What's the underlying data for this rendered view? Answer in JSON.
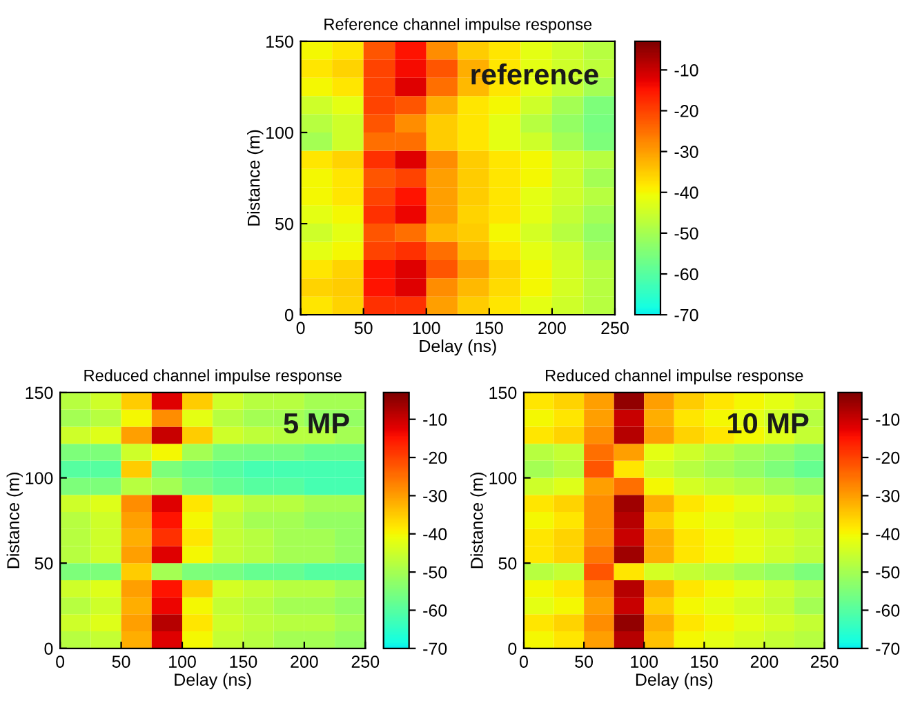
{
  "chart_data": [
    {
      "type": "heatmap",
      "title": "Reference channel impulse response",
      "xlabel": "Delay (ns)",
      "ylabel": "Distance (m)",
      "annotations": [
        "reference"
      ],
      "x": [
        12.5,
        37.5,
        62.5,
        87.5,
        112.5,
        137.5,
        162.5,
        187.5,
        212.5,
        237.5
      ],
      "y": [
        145,
        135,
        125,
        115,
        105,
        95,
        85,
        75,
        65,
        55,
        45,
        35,
        25,
        15,
        5
      ],
      "xlim": [
        0,
        250
      ],
      "ylim": [
        0,
        150
      ],
      "xticks": [
        0,
        50,
        100,
        150,
        200,
        250
      ],
      "yticks": [
        0,
        50,
        100,
        150
      ],
      "clim": [
        -70,
        -3
      ],
      "cticks": [
        -70,
        -60,
        -50,
        -40,
        -30,
        -20,
        -10
      ],
      "cells": [
        [
          -40,
          -38,
          -22,
          -15,
          -28,
          -35,
          -38,
          -42,
          -45,
          -48
        ],
        [
          -38,
          -36,
          -20,
          -14,
          -22,
          -32,
          -38,
          -42,
          -45,
          -47
        ],
        [
          -40,
          -38,
          -20,
          -12,
          -25,
          -33,
          -38,
          -42,
          -46,
          -50
        ],
        [
          -45,
          -42,
          -20,
          -22,
          -32,
          -38,
          -40,
          -45,
          -50,
          -55
        ],
        [
          -48,
          -45,
          -22,
          -28,
          -35,
          -38,
          -42,
          -48,
          -52,
          -56
        ],
        [
          -50,
          -45,
          -25,
          -25,
          -35,
          -38,
          -42,
          -45,
          -50,
          -55
        ],
        [
          -38,
          -36,
          -18,
          -12,
          -28,
          -35,
          -38,
          -40,
          -45,
          -48
        ],
        [
          -40,
          -38,
          -22,
          -20,
          -30,
          -35,
          -38,
          -40,
          -45,
          -50
        ],
        [
          -40,
          -38,
          -20,
          -15,
          -30,
          -35,
          -38,
          -42,
          -45,
          -48
        ],
        [
          -42,
          -40,
          -18,
          -13,
          -30,
          -36,
          -38,
          -42,
          -46,
          -50
        ],
        [
          -45,
          -42,
          -22,
          -25,
          -33,
          -35,
          -40,
          -44,
          -48,
          -52
        ],
        [
          -42,
          -40,
          -20,
          -18,
          -25,
          -33,
          -38,
          -42,
          -45,
          -50
        ],
        [
          -38,
          -36,
          -15,
          -12,
          -22,
          -30,
          -36,
          -40,
          -44,
          -48
        ],
        [
          -36,
          -35,
          -15,
          -12,
          -28,
          -33,
          -37,
          -40,
          -44,
          -48
        ],
        [
          -38,
          -36,
          -18,
          -18,
          -30,
          -35,
          -38,
          -42,
          -45,
          -48
        ]
      ]
    },
    {
      "type": "heatmap",
      "title": "Reduced channel impulse response",
      "xlabel": "Delay (ns)",
      "ylabel": "Distance (m)",
      "annotations": [
        "5 MP"
      ],
      "x": [
        12.5,
        37.5,
        62.5,
        87.5,
        112.5,
        137.5,
        162.5,
        187.5,
        212.5,
        237.5
      ],
      "y": [
        145,
        135,
        125,
        115,
        105,
        95,
        85,
        75,
        65,
        55,
        45,
        35,
        25,
        15,
        5
      ],
      "xlim": [
        0,
        250
      ],
      "ylim": [
        0,
        150
      ],
      "xticks": [
        0,
        50,
        100,
        150,
        200,
        250
      ],
      "yticks": [
        0,
        50,
        100,
        150
      ],
      "clim": [
        -70,
        -3
      ],
      "cticks": [
        -70,
        -60,
        -50,
        -40,
        -30,
        -20,
        -10
      ],
      "cells": [
        [
          -48,
          -45,
          -35,
          -12,
          -35,
          -45,
          -48,
          -48,
          -50,
          -50
        ],
        [
          -50,
          -48,
          -40,
          -28,
          -42,
          -48,
          -50,
          -50,
          -52,
          -52
        ],
        [
          -45,
          -43,
          -30,
          -10,
          -35,
          -45,
          -47,
          -48,
          -48,
          -50
        ],
        [
          -55,
          -55,
          -45,
          -40,
          -50,
          -55,
          -56,
          -56,
          -58,
          -58
        ],
        [
          -60,
          -60,
          -35,
          -55,
          -58,
          -60,
          -62,
          -62,
          -62,
          -62
        ],
        [
          -55,
          -55,
          -48,
          -50,
          -55,
          -58,
          -60,
          -60,
          -62,
          -62
        ],
        [
          -45,
          -43,
          -28,
          -12,
          -38,
          -45,
          -48,
          -48,
          -50,
          -50
        ],
        [
          -48,
          -45,
          -30,
          -15,
          -40,
          -47,
          -50,
          -50,
          -52,
          -52
        ],
        [
          -48,
          -45,
          -32,
          -18,
          -38,
          -46,
          -48,
          -50,
          -50,
          -52
        ],
        [
          -48,
          -45,
          -30,
          -12,
          -40,
          -46,
          -48,
          -50,
          -50,
          -52
        ],
        [
          -55,
          -55,
          -35,
          -50,
          -55,
          -56,
          -58,
          -58,
          -60,
          -60
        ],
        [
          -45,
          -43,
          -30,
          -15,
          -35,
          -44,
          -46,
          -48,
          -48,
          -50
        ],
        [
          -48,
          -45,
          -32,
          -13,
          -40,
          -46,
          -48,
          -50,
          -50,
          -52
        ],
        [
          -45,
          -43,
          -30,
          -8,
          -38,
          -45,
          -47,
          -48,
          -48,
          -50
        ],
        [
          -48,
          -46,
          -32,
          -12,
          -40,
          -46,
          -48,
          -50,
          -50,
          -52
        ]
      ]
    },
    {
      "type": "heatmap",
      "title": "Reduced channel impulse response",
      "xlabel": "Delay (ns)",
      "ylabel": "Distance (m)",
      "annotations": [
        "10 MP"
      ],
      "x": [
        12.5,
        37.5,
        62.5,
        87.5,
        112.5,
        137.5,
        162.5,
        187.5,
        212.5,
        237.5
      ],
      "y": [
        145,
        135,
        125,
        115,
        105,
        95,
        85,
        75,
        65,
        55,
        45,
        35,
        25,
        15,
        5
      ],
      "xlim": [
        0,
        250
      ],
      "ylim": [
        0,
        150
      ],
      "xticks": [
        0,
        50,
        100,
        150,
        200,
        250
      ],
      "yticks": [
        0,
        50,
        100,
        150
      ],
      "clim": [
        -70,
        -3
      ],
      "cticks": [
        -70,
        -60,
        -50,
        -40,
        -30,
        -20,
        -10
      ],
      "cells": [
        [
          -38,
          -36,
          -30,
          -5,
          -30,
          -35,
          -38,
          -40,
          -42,
          -45
        ],
        [
          -40,
          -38,
          -30,
          -10,
          -32,
          -38,
          -40,
          -42,
          -45,
          -48
        ],
        [
          -38,
          -36,
          -28,
          -8,
          -30,
          -36,
          -38,
          -40,
          -43,
          -46
        ],
        [
          -48,
          -46,
          -25,
          -30,
          -42,
          -45,
          -48,
          -50,
          -52,
          -55
        ],
        [
          -50,
          -48,
          -22,
          -38,
          -45,
          -48,
          -50,
          -52,
          -55,
          -58
        ],
        [
          -45,
          -43,
          -30,
          -25,
          -40,
          -44,
          -46,
          -48,
          -50,
          -52
        ],
        [
          -38,
          -36,
          -28,
          -6,
          -32,
          -38,
          -40,
          -42,
          -44,
          -46
        ],
        [
          -40,
          -38,
          -28,
          -8,
          -35,
          -40,
          -42,
          -44,
          -46,
          -48
        ],
        [
          -38,
          -36,
          -28,
          -10,
          -32,
          -38,
          -40,
          -42,
          -44,
          -46
        ],
        [
          -38,
          -36,
          -26,
          -6,
          -32,
          -38,
          -40,
          -42,
          -45,
          -47
        ],
        [
          -48,
          -46,
          -22,
          -38,
          -44,
          -46,
          -48,
          -50,
          -52,
          -55
        ],
        [
          -40,
          -38,
          -28,
          -8,
          -32,
          -38,
          -40,
          -42,
          -45,
          -48
        ],
        [
          -42,
          -40,
          -30,
          -10,
          -35,
          -40,
          -42,
          -44,
          -46,
          -50
        ],
        [
          -38,
          -36,
          -28,
          -5,
          -32,
          -38,
          -40,
          -42,
          -44,
          -46
        ],
        [
          -40,
          -38,
          -30,
          -8,
          -34,
          -40,
          -42,
          -44,
          -46,
          -48
        ]
      ]
    }
  ]
}
